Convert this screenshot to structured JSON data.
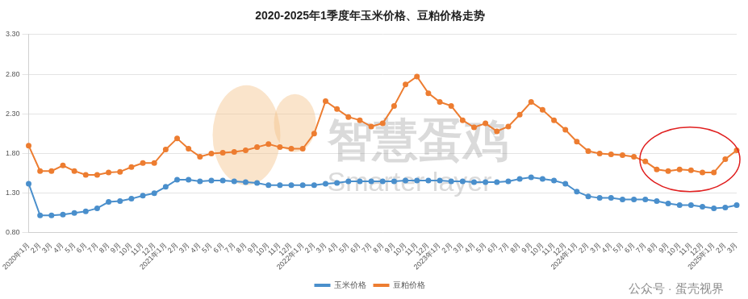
{
  "chart_data": {
    "type": "line",
    "title": "2020-2025年1季度年玉米价格、豆粕价格走势",
    "categories": [
      "2020年1月",
      "2月",
      "3月",
      "4月",
      "5月",
      "6月",
      "7月",
      "8月",
      "9月",
      "10月",
      "11月",
      "12月",
      "2021年1月",
      "2月",
      "3月",
      "4月",
      "5月",
      "6月",
      "7月",
      "8月",
      "9月",
      "10月",
      "11月",
      "12月",
      "2022年1月",
      "2月",
      "3月",
      "4月",
      "5月",
      "6月",
      "7月",
      "8月",
      "9月",
      "10月",
      "11月",
      "12月",
      "2023年1月",
      "2月",
      "3月",
      "4月",
      "5月",
      "6月",
      "7月",
      "8月",
      "9月",
      "10月",
      "11月",
      "12月",
      "2024年1月",
      "2月",
      "3月",
      "4月",
      "5月",
      "6月",
      "7月",
      "8月",
      "9月",
      "10月",
      "11月",
      "12月",
      "2025年1月",
      "2月",
      "3月"
    ],
    "series": [
      {
        "name": "玉米价格",
        "color": "#4a8fcc",
        "marker": "circle",
        "line_style": "solid",
        "values": [
          1.42,
          1.02,
          1.02,
          1.03,
          1.05,
          1.07,
          1.11,
          1.19,
          1.2,
          1.23,
          1.27,
          1.3,
          1.38,
          1.47,
          1.47,
          1.45,
          1.46,
          1.46,
          1.45,
          1.44,
          1.43,
          1.4,
          1.4,
          1.4,
          1.4,
          1.4,
          1.42,
          1.43,
          1.45,
          1.45,
          1.45,
          1.45,
          1.45,
          1.46,
          1.46,
          1.46,
          1.46,
          1.45,
          1.45,
          1.44,
          1.44,
          1.44,
          1.45,
          1.48,
          1.5,
          1.48,
          1.46,
          1.42,
          1.32,
          1.26,
          1.24,
          1.24,
          1.22,
          1.22,
          1.22,
          1.2,
          1.17,
          1.15,
          1.15,
          1.13,
          1.11,
          1.12,
          1.15
        ]
      },
      {
        "name": "豆粕价格",
        "color": "#ed7d31",
        "marker": "circle",
        "line_style": "solid",
        "values": [
          1.9,
          1.58,
          1.58,
          1.65,
          1.58,
          1.53,
          1.53,
          1.56,
          1.57,
          1.63,
          1.68,
          1.68,
          1.85,
          1.99,
          1.86,
          1.76,
          1.8,
          1.81,
          1.82,
          1.84,
          1.88,
          1.92,
          1.88,
          1.86,
          1.86,
          2.05,
          2.46,
          2.36,
          2.26,
          2.22,
          2.14,
          2.18,
          2.4,
          2.67,
          2.77,
          2.56,
          2.45,
          2.4,
          2.22,
          2.13,
          2.18,
          2.08,
          2.14,
          2.29,
          2.45,
          2.35,
          2.22,
          2.1,
          1.95,
          1.83,
          1.8,
          1.79,
          1.78,
          1.76,
          1.7,
          1.6,
          1.58,
          1.6,
          1.59,
          1.56,
          1.56,
          1.73,
          1.84
        ]
      }
    ],
    "ylim": [
      0.8,
      3.3
    ],
    "yticks": [
      {
        "value": 0.8,
        "label": "0.80"
      },
      {
        "value": 1.3,
        "label": "1.30"
      },
      {
        "value": 1.8,
        "label": "1.80"
      },
      {
        "value": 2.3,
        "label": "2.30"
      },
      {
        "value": 2.8,
        "label": "2.80"
      },
      {
        "value": 3.3,
        "label": "3.30"
      }
    ],
    "grid": true,
    "legend": "bottom",
    "annotations": [
      "智慧蛋鸡",
      "Smarter layer",
      "公众号 · 蛋壳视界"
    ]
  }
}
